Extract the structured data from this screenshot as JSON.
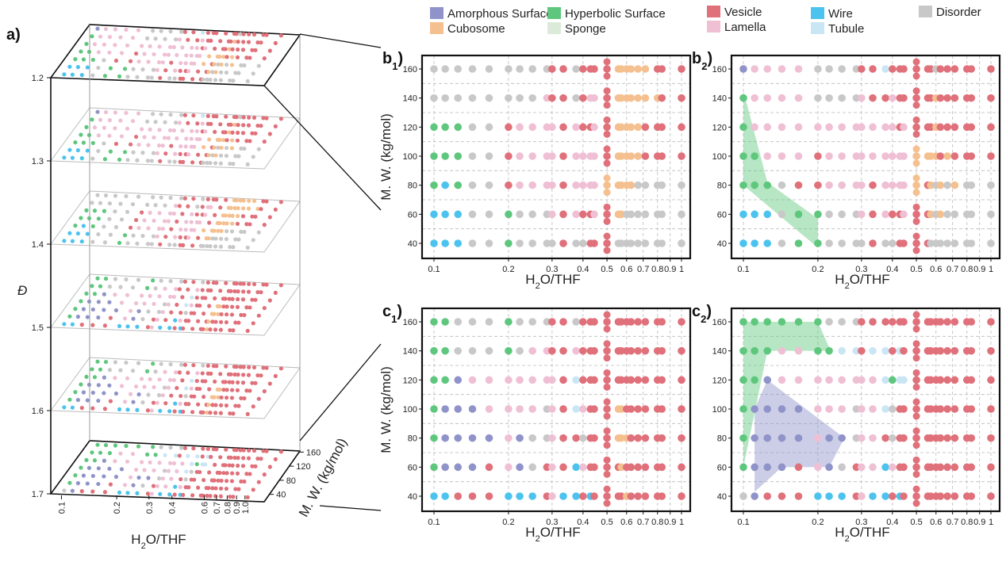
{
  "colors": {
    "A": "#8f93c9",
    "C": "#f5c08f",
    "H": "#5ec77d",
    "S": "#dcebd9",
    "V": "#e0707a",
    "L": "#efbfd4",
    "W": "#4cc3ee",
    "T": "#c9e6f5",
    "D": "#c8c8c8"
  },
  "legend": [
    {
      "code": "A",
      "label": "Amorphous Surface"
    },
    {
      "code": "C",
      "label": "Cubosome"
    },
    {
      "code": "H",
      "label": "Hyperbolic Surface"
    },
    {
      "code": "S",
      "label": "Sponge"
    },
    {
      "code": "V",
      "label": "Vesicle"
    },
    {
      "code": "L",
      "label": "Lamella"
    },
    {
      "code": "W",
      "label": "Wire"
    },
    {
      "code": "T",
      "label": "Tubule"
    },
    {
      "code": "D",
      "label": "Disorder"
    }
  ],
  "chart_data": [
    {
      "id": "a",
      "type": "scatter",
      "title": "a)",
      "xlabel_parts": [
        "H",
        "2",
        "O/THF"
      ],
      "ylabel": "Đ",
      "zlabel": "M. W. (kg/mol)",
      "x_ticks": [
        "0.1",
        "0.2",
        "0.3",
        "0.4",
        "0.6",
        "0.7",
        "0.8",
        "0.9",
        "1.0"
      ],
      "x_tick_values": [
        0.1,
        0.2,
        0.3,
        0.4,
        0.6,
        0.7,
        0.8,
        0.9,
        1.0
      ],
      "d_ticks": [
        "1.2",
        "1.3",
        "1.4",
        "1.5",
        "1.6",
        "1.7"
      ],
      "z_ticks": [
        "40",
        "80",
        "120",
        "160"
      ],
      "layer_grids": [
        "b2",
        "b2",
        "b1",
        "c1",
        "c1",
        "c2"
      ]
    },
    {
      "id": "b1",
      "type": "scatter",
      "label": "b",
      "sub": "1",
      "xlabel_parts": [
        "H",
        "2",
        "O/THF"
      ],
      "ylabel": "M. W. (kg/mol)",
      "xscale": "log",
      "xlim": [
        0.09,
        1.1
      ],
      "ylim": [
        33,
        167
      ],
      "rows": {
        "160": "DDDDDDDDDVVDVVVVCCCCCCVVV",
        "140": "DDDDDDDDLVVDVLLVCCCCCCCVV",
        "120": "HHHDDVLLLLVLVVLVCCCCCVVVV",
        "100": "HHHDDVLLLLVLLLLVCCCCCVVVV",
        "80": "HWHDDVLLLLVLLLLCCCCCDDDDD",
        "60": "WWWDDHDDDLVLVVLVCCDDDDDDD",
        "40": "WWWDDHDDDDVDDVVVDDDDDDDDD"
      }
    },
    {
      "id": "b2",
      "type": "scatter",
      "label": "b",
      "sub": "2",
      "xlabel_parts": [
        "H",
        "2",
        "O/THF"
      ],
      "xscale": "log",
      "xlim": [
        0.09,
        1.1
      ],
      "ylim": [
        33,
        167
      ],
      "rows": {
        "160": "ALLLLDDDDVVTVVVVVVDVVVVVV",
        "140": "HLLLLDDDDLVVLVVVVVCVVVVVV",
        "120": "HLLLLLLLLLLLLVLVVVCVVVVVV",
        "100": "HHLLLVLLLLLLLLLCCCCVCVVVV",
        "80": "HHHDVVLLLLVLLLLCVCDCDCDDD",
        "60": "WWWDHHDDDLVLVVLVVCDCDDDDD",
        "40": "WWWDHHDDDDVDDVVVVDDDDDDDD"
      },
      "regions": [
        {
          "class": "H",
          "points": [
            [
              0.1,
              145
            ],
            [
              0.1,
              80
            ],
            [
              0.2,
              37
            ],
            [
              0.2,
              57
            ],
            [
              0.125,
              82
            ]
          ]
        }
      ]
    },
    {
      "id": "c1",
      "type": "scatter",
      "label": "c",
      "sub": "1",
      "xlabel_parts": [
        "H",
        "2",
        "O/THF"
      ],
      "ylabel": "M. W. (kg/mol)",
      "xscale": "log",
      "xlim": [
        0.09,
        1.1
      ],
      "ylim": [
        33,
        167
      ],
      "rows": {
        "160": "HHDDDHDDDVVDVVVVVVVVVVVVV",
        "140": "HHDDDHDLLVVLVVVVVVVVVVVVV",
        "120": "HHALLLLLLLVTVVVVVVVVVVVVV",
        "100": "HAAALLLLDLVTLVVVCCVVVVVVV",
        "80": "HAAAALADDLVVDVVVCCCVVVVVV",
        "60": "HAAAVLADVLVWLVVVVCVVVVVVV",
        "40": "WWVVVWWWVLWWVWVVVVCVVVVVV"
      }
    },
    {
      "id": "c2",
      "type": "scatter",
      "label": "c",
      "sub": "2",
      "xlabel_parts": [
        "H",
        "2",
        "O/THF"
      ],
      "xscale": "log",
      "xlim": [
        0.09,
        1.1
      ],
      "ylim": [
        33,
        167
      ],
      "rows": {
        "160": "HHHHHHDDDVVVVVVVVVVVVVVVV",
        "140": "HHHLLHHTTVTTVTVVVVVVVVVVV",
        "120": "HHALLLLLLLLTHTTVVVVVVVVVV",
        "100": "HAAAALLLDLLTDVVVVVVVVVVVV",
        "80": "HAAAALAADLLVDVVVVVVVVVVVV",
        "60": "HAAAVLADVLLWLVVVVVVVVVVVV",
        "40": "DAVVVWWWVLWWVWVVVVVVVVVVV"
      },
      "regions": [
        {
          "class": "H",
          "points": [
            [
              0.1,
              160
            ],
            [
              0.2,
              160
            ],
            [
              0.225,
              140
            ],
            [
              0.125,
              140
            ],
            [
              0.1,
              60
            ]
          ]
        },
        {
          "class": "A",
          "points": [
            [
              0.125,
              120
            ],
            [
              0.256,
              80
            ],
            [
              0.222,
              60
            ],
            [
              0.143,
              60
            ],
            [
              0.111,
              43
            ],
            [
              0.111,
              100
            ]
          ]
        }
      ]
    }
  ],
  "x_columns": [
    0.1,
    0.111,
    0.125,
    0.143,
    0.167,
    0.2,
    0.222,
    0.25,
    0.286,
    0.3,
    0.333,
    0.375,
    0.4,
    0.429,
    0.444,
    0.5,
    0.556,
    0.571,
    0.6,
    0.625,
    0.667,
    0.714,
    0.8,
    0.833,
    1
  ],
  "x_ticks": [
    "0.1",
    "0.2",
    "0.3",
    "0.4",
    "0.5",
    "0.6",
    "0.7",
    "0.8",
    "0.9",
    "1"
  ],
  "x_tick_values": [
    0.1,
    0.2,
    0.3,
    0.4,
    0.5,
    0.6,
    0.7,
    0.8,
    0.9,
    1
  ],
  "y_ticks": [
    "40",
    "60",
    "80",
    "100",
    "120",
    "140",
    "160"
  ]
}
